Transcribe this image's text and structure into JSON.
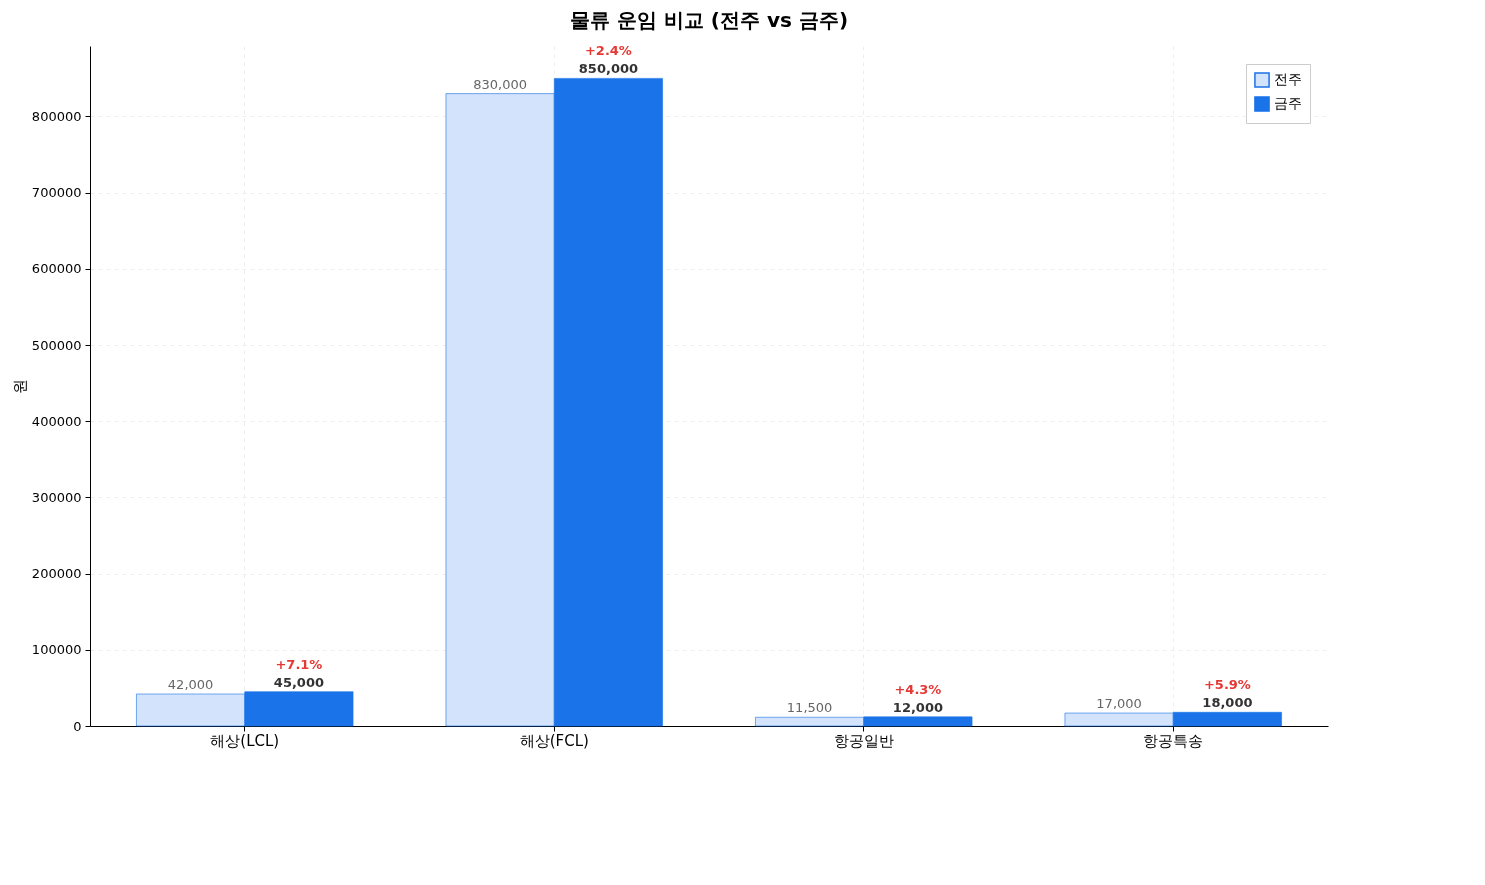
{
  "chart_data": {
    "type": "bar",
    "title": "물류 운임 비교 (전주 vs 금주)",
    "ylabel": "원",
    "categories": [
      "해상(LCL)",
      "해상(FCL)",
      "항공일반",
      "항공특송"
    ],
    "series": [
      {
        "name": "전주",
        "color": "#d3e3fc",
        "values": [
          42000,
          830000,
          11500,
          17000
        ],
        "value_labels": [
          "42,000",
          "830,000",
          "11,500",
          "17,000"
        ]
      },
      {
        "name": "금주",
        "color": "#1a73e8",
        "values": [
          45000,
          850000,
          12000,
          18000
        ],
        "value_labels": [
          "45,000",
          "850,000",
          "12,000",
          "18,000"
        ]
      }
    ],
    "annotations": [
      {
        "text": "+7.1%",
        "x": "해상(LCL)",
        "y": 45000
      },
      {
        "text": "+2.4%",
        "x": "해상(FCL)",
        "y": 850000
      },
      {
        "text": "+4.3%",
        "x": "항공일반",
        "y": 12000
      },
      {
        "text": "+5.9%",
        "x": "항공특송",
        "y": 18000
      }
    ],
    "ylim": [
      0,
      892500
    ],
    "yticks": [
      0,
      100000,
      200000,
      300000,
      400000,
      500000,
      600000,
      700000,
      800000
    ],
    "grid": true,
    "legend": "top right"
  }
}
